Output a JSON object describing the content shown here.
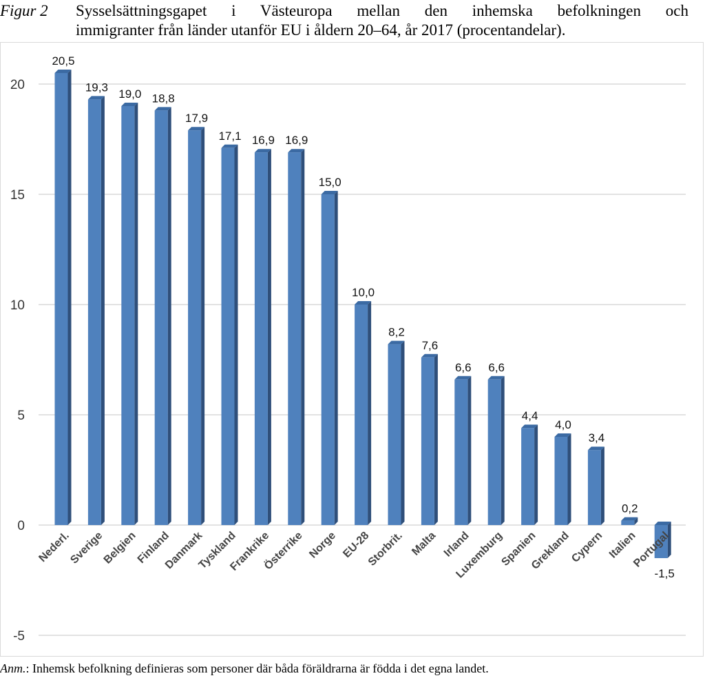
{
  "caption": {
    "figure_label": "Figur 2",
    "line1": "Sysselsättningsgapet i Västeuropa mellan den inhemska befolkningen och",
    "line2": "immigranter från länder utanför EU i åldern 20–64, år 2017 (procentandelar)."
  },
  "note": {
    "prefix": "Anm.",
    "text": ": Inhemsk befolkning definieras som personer där båda föräldrarna är födda i det egna landet."
  },
  "chart_data": {
    "type": "bar",
    "categories": [
      "Nederl.",
      "Sverige",
      "Belgien",
      "Finland",
      "Danmark",
      "Tyskland",
      "Frankrike",
      "Österrike",
      "Norge",
      "EU-28",
      "Storbrit.",
      "Malta",
      "Irland",
      "Luxemburg",
      "Spanien",
      "Grekland",
      "Cypern",
      "Italien",
      "Portugal"
    ],
    "values": [
      20.5,
      19.3,
      19.0,
      18.8,
      17.9,
      17.1,
      16.9,
      16.9,
      15.0,
      10.0,
      8.2,
      7.6,
      6.6,
      6.6,
      4.4,
      4.0,
      3.4,
      0.2,
      -1.5
    ],
    "data_labels": [
      "20,5",
      "19,3",
      "19,0",
      "18,8",
      "17,9",
      "17,1",
      "16,9",
      "16,9",
      "15,0",
      "10,0",
      "8,2",
      "7,6",
      "6,6",
      "6,6",
      "4,4",
      "4,0",
      "3,4",
      "0,2",
      "-1,5"
    ],
    "y_ticks": [
      20,
      15,
      10,
      5,
      0,
      -5
    ],
    "ylim": [
      -5,
      20
    ],
    "grid": true,
    "bar_color": "#4f81bd",
    "bar_side_color": "#2f4f7a",
    "bar_top_color": "#3b6aa3",
    "gridline_color": "#d9d9d9",
    "title": "",
    "xlabel": "",
    "ylabel": ""
  }
}
